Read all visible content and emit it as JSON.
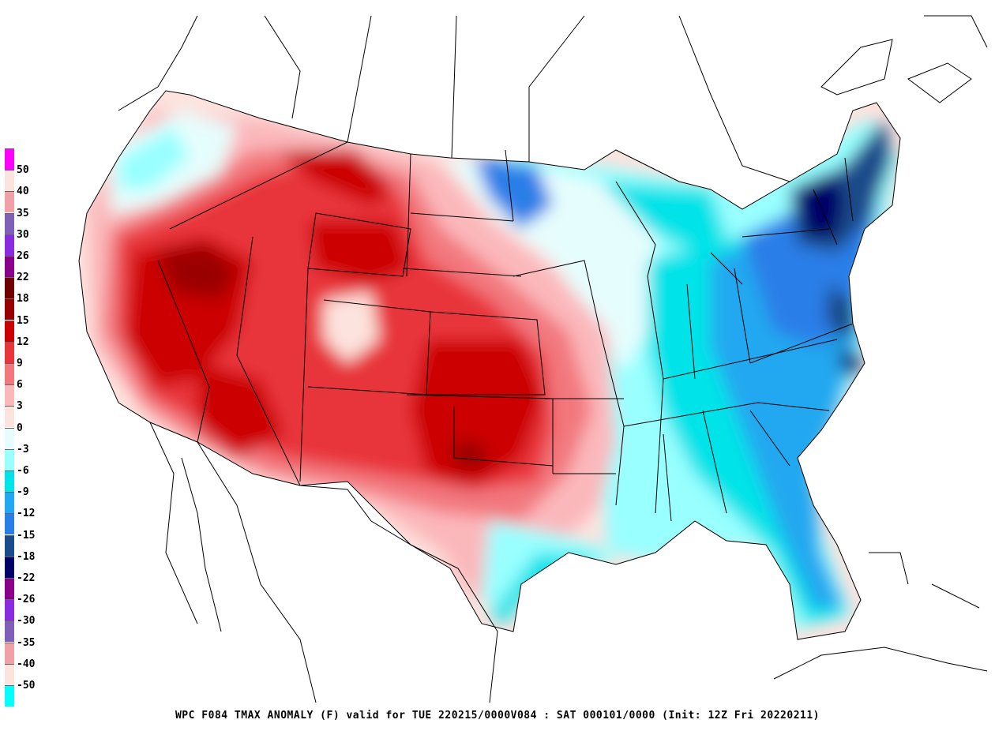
{
  "caption": "WPC F084 TMAX ANOMALY (F) valid for  TUE 220215/0000V084 : SAT 000101/0000 (Init: 12Z Fri 20220211)",
  "legend": {
    "labels": [
      "50",
      "40",
      "35",
      "30",
      "26",
      "22",
      "18",
      "15",
      "12",
      "9",
      "6",
      "3",
      "0",
      "-3",
      "-6",
      "-9",
      "-12",
      "-15",
      "-18",
      "-22",
      "-26",
      "-30",
      "-35",
      "-40",
      "-50"
    ],
    "colors": [
      "#ff00ff",
      "#fde3de",
      "#f2a0a8",
      "#7f5fb8",
      "#8a2be2",
      "#8b008b",
      "#6e0000",
      "#9b0000",
      "#cc0000",
      "#e8363a",
      "#f2787e",
      "#fbb8bb",
      "#fde3de",
      "#e6fdfd",
      "#99ffff",
      "#00e3e8",
      "#20a8f0",
      "#2a7ee8",
      "#1a4b8a",
      "#000068",
      "#8b008b",
      "#8a2be2",
      "#7f5fb8",
      "#f2a0a8",
      "#fde3de",
      "#00ffff"
    ]
  },
  "map": {
    "warm_color_strong": "#cc0000",
    "warm_color_mid": "#e8363a",
    "warm_color_light": "#f2787e",
    "warm_color_pale": "#fbb8bb",
    "cool_color_pale": "#e6fdfd",
    "cool_color_light": "#99ffff",
    "cool_color_mid": "#00e3e8",
    "cool_color_strong": "#2a7ee8",
    "cool_color_deep": "#1a4b8a",
    "cool_color_deepest": "#000068"
  }
}
